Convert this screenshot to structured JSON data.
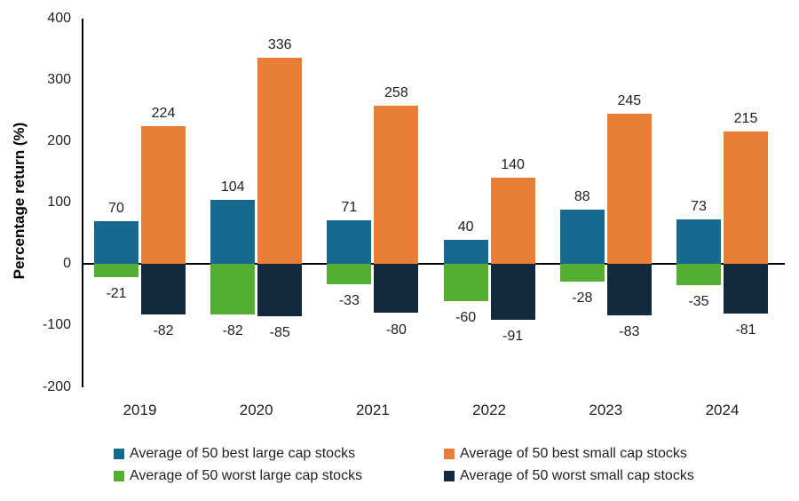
{
  "chart_data": {
    "type": "bar",
    "title": "",
    "xlabel": "",
    "ylabel": "Percentage return (%)",
    "ylim": [
      -200,
      400
    ],
    "yticks": [
      400,
      300,
      200,
      100,
      0,
      -100,
      -200
    ],
    "grid": false,
    "legend_position": "bottom",
    "value_labels": true,
    "categories": [
      "2019",
      "2020",
      "2021",
      "2022",
      "2023",
      "2024"
    ],
    "series": [
      {
        "name": "Average of 50 best large cap stocks",
        "color": "#176A8F",
        "column": 0,
        "values": [
          70,
          104,
          71,
          40,
          88,
          73
        ]
      },
      {
        "name": "Average of 50 best small cap stocks",
        "color": "#E87D35",
        "column": 1,
        "values": [
          224,
          336,
          258,
          140,
          245,
          215
        ]
      },
      {
        "name": "Average of 50 worst large cap stocks",
        "color": "#53AE32",
        "column": 0,
        "values": [
          -21,
          -82,
          -33,
          -60,
          -28,
          -35
        ]
      },
      {
        "name": "Average of 50 worst small cap stocks",
        "color": "#12293E",
        "column": 1,
        "values": [
          -82,
          -85,
          -80,
          -91,
          -83,
          -81
        ]
      }
    ],
    "axis_color": "#000000",
    "text_color": "#1f1f1f"
  }
}
